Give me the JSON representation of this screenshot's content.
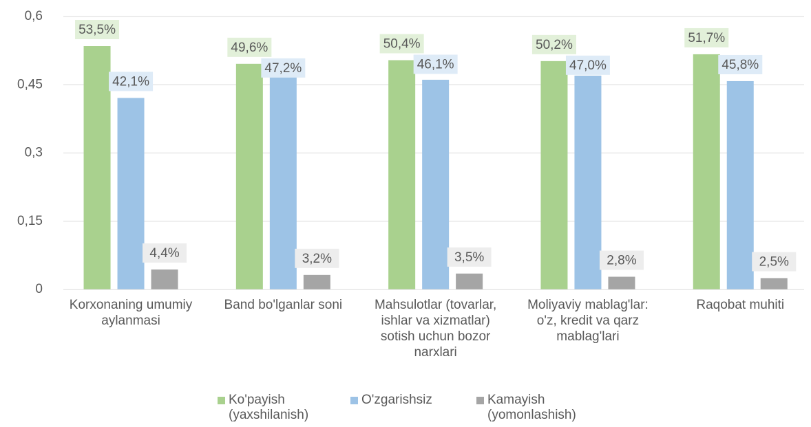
{
  "chart_data": {
    "type": "bar",
    "categories": [
      "Korxonaning umumiy aylanmasi",
      "Band bo'lganlar soni",
      "Mahsulotlar (tovarlar, ishlar va xizmatlar) sotish uchun bozor narxlari",
      "Moliyaviy mablag'lar: o'z, kredit va qarz mablag'lari",
      "Raqobat muhiti"
    ],
    "series": [
      {
        "name": "Ko'payish (yaxshilanish)",
        "color": "#a9d18e",
        "values": [
          0.535,
          0.496,
          0.504,
          0.502,
          0.517
        ],
        "value_labels": [
          "53,5%",
          "49,6%",
          "50,4%",
          "50,2%",
          "51,7%"
        ]
      },
      {
        "name": "O'zgarishsiz",
        "color": "#9dc3e6",
        "values": [
          0.421,
          0.472,
          0.461,
          0.47,
          0.458
        ],
        "value_labels": [
          "42,1%",
          "47,2%",
          "46,1%",
          "47,0%",
          "45,8%"
        ]
      },
      {
        "name": "Kamayish (yomonlashish)",
        "color": "#a5a5a5",
        "values": [
          0.044,
          0.032,
          0.035,
          0.028,
          0.025
        ],
        "value_labels": [
          "4,4%",
          "3,2%",
          "3,5%",
          "2,8%",
          "2,5%"
        ]
      }
    ],
    "ylim": [
      0,
      0.6
    ],
    "yticks": [
      0,
      {
        "value": 0.15,
        "label": "0,15"
      },
      {
        "value": 0.3,
        "label": "0,3"
      },
      {
        "value": 0.45,
        "label": "0,45"
      },
      {
        "value": 0.6,
        "label": "0,6"
      }
    ],
    "grid": true,
    "legend": "bottom"
  }
}
